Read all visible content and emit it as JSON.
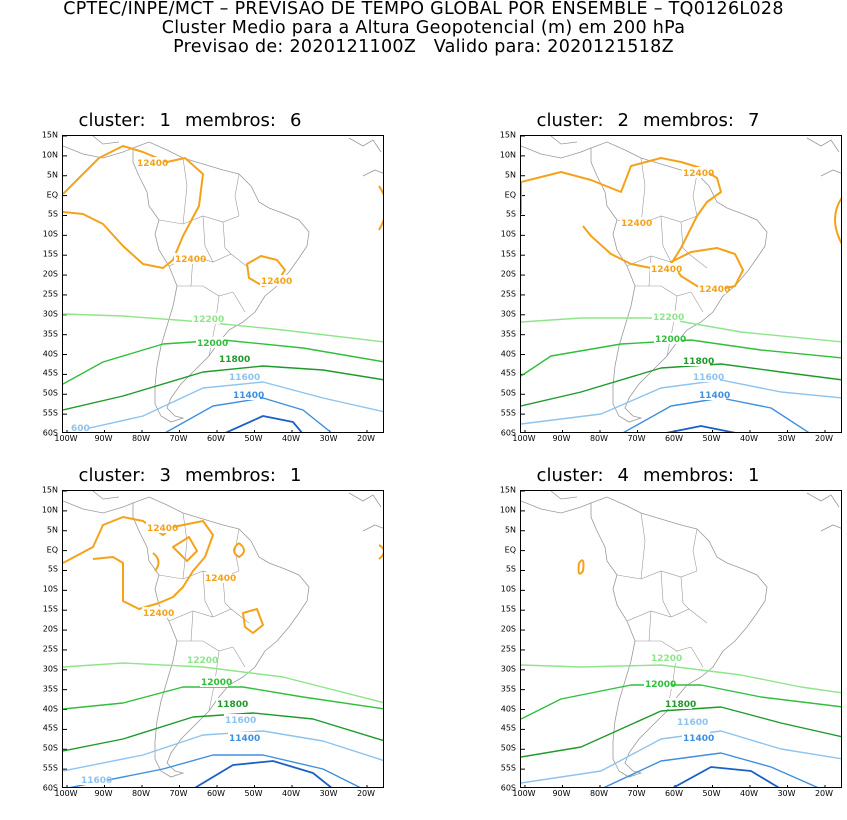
{
  "header": {
    "line1": "CPTEC/INPE/MCT – PREVISAO DE TEMPO GLOBAL POR ENSEMBLE – TQ0126L028",
    "line2": "Cluster Medio para a Altura Geopotencial (m) em 200 hPa",
    "line3": "Previsao de: 2020121100Z   Valido para: 2020121518Z"
  },
  "axes": {
    "lat_labels": [
      "15N",
      "10N",
      "5N",
      "EQ",
      "5S",
      "10S",
      "15S",
      "20S",
      "25S",
      "30S",
      "35S",
      "40S",
      "45S",
      "50S",
      "55S",
      "60S"
    ],
    "lon_labels": [
      "100W",
      "90W",
      "80W",
      "70W",
      "60W",
      "50W",
      "40W",
      "30W",
      "20W"
    ]
  },
  "colors": {
    "c12400": "#f5a21b",
    "c12200": "#8ee58a",
    "c12000": "#2fbf3a",
    "c11800": "#1f9a2a",
    "c11600": "#8ec3ee",
    "c11400": "#3f8fe0",
    "c11200": "#1a60c8",
    "coast": "#9a9a9a"
  },
  "panels": [
    {
      "cluster_word": "cluster:",
      "cluster": "1",
      "members_word": "membros:",
      "members": "6",
      "labels": {
        "l12400a": "12400",
        "l12400b": "12400",
        "l12400c": "12400",
        "l12200": "12200",
        "l12000": "12000",
        "l11800": "11800",
        "l11600": "11600",
        "l11400": "11400",
        "ledge": "600"
      }
    },
    {
      "cluster_word": "cluster:",
      "cluster": "2",
      "members_word": "membros:",
      "members": "7",
      "labels": {
        "l12400a": "12400",
        "l12400b": "12400",
        "l12400c": "12400",
        "l12400d": "12400",
        "l12200": "12200",
        "l12000": "12000",
        "l11800": "11800",
        "l11600": "11600",
        "l11400": "11400"
      }
    },
    {
      "cluster_word": "cluster:",
      "cluster": "3",
      "members_word": "membros:",
      "members": "1",
      "labels": {
        "l12400a": "12400",
        "l12400b": "12400",
        "l12400c": "12400",
        "l12200": "12200",
        "l12000": "12000",
        "l11800": "11800",
        "l11600": "11600",
        "l11400": "11400",
        "ledge": "11600"
      }
    },
    {
      "cluster_word": "cluster:",
      "cluster": "4",
      "members_word": "membros:",
      "members": "1",
      "labels": {
        "l12200": "12200",
        "l12000": "12000",
        "l11800": "11800",
        "l11600": "11600",
        "l11400": "11400"
      }
    }
  ]
}
